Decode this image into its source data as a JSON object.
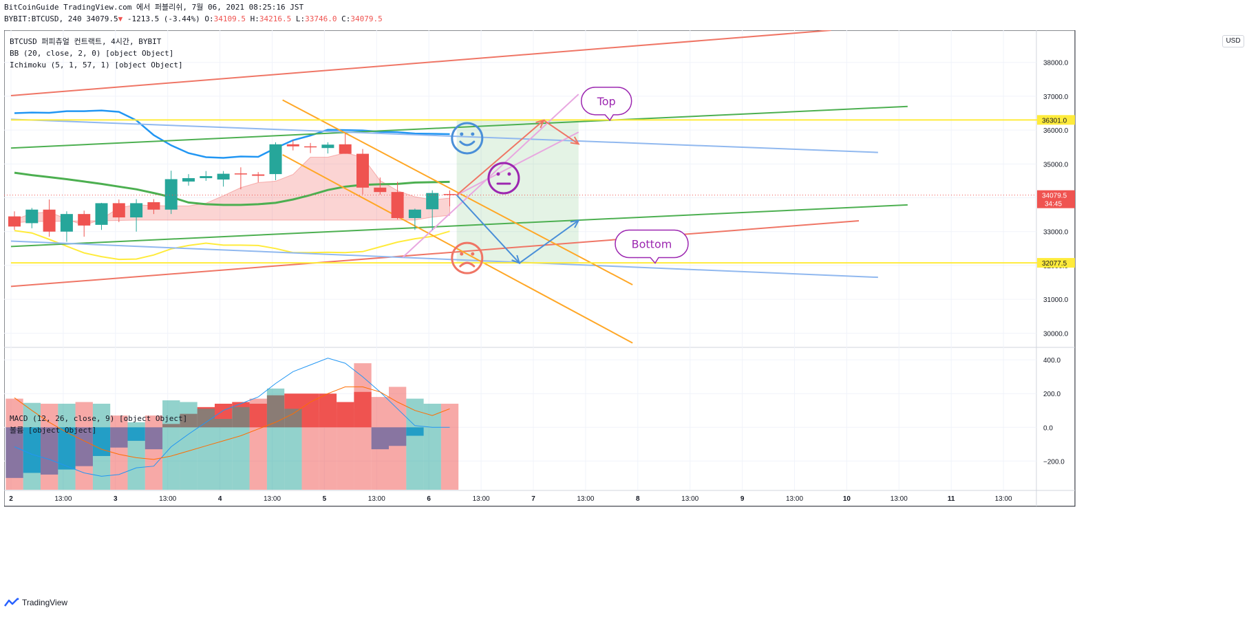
{
  "header": {
    "line1": "BitCoinGuide TradingView.com 에서 퍼블리쉬, 7월 06, 2021 08:25:16 JST",
    "line2_symbol": "BYBIT:BTCUSD, 240 34079.5",
    "line2_arrow": "▼",
    "line2_change": "-1213.5 (-3.44%)",
    "o_label": "O:",
    "o_value": "34109.5",
    "h_label": "H:",
    "h_value": "34216.5",
    "l_label": "L:",
    "l_value": "33746.0",
    "c_label": "C:",
    "c_value": "34079.5"
  },
  "legend": {
    "title": "BTCUSD 퍼피츄얼 컨트랙트, 4시간, BYBIT",
    "bb": "BB (20, close, 2, 0) [object Object]",
    "ichimoku": "Ichimoku (5, 1, 57, 1) [object Object]",
    "macd": "MACD (12, 26, close, 9) [object Object]",
    "volume": "볼륨 [object Object]"
  },
  "currency_badge": "USD",
  "branding": "TradingView",
  "annotations": {
    "top": "Top",
    "bottom": "Bottom"
  },
  "colors": {
    "up": "#26a69a",
    "down": "#ef5350",
    "blue": "#2196f3",
    "green": "#4caf50",
    "yellow": "#ffeb3b",
    "orange": "#ffa726",
    "salmon": "#ef7565",
    "lightblue": "#90b8ef",
    "pink": "#e8a7e0",
    "purple": "#9c27b0",
    "macd_line": "#2196f3",
    "signal_line": "#ff6d00"
  },
  "chart_data": [
    {
      "type": "candlestick",
      "title": "BTCUSD 퍼피츄얼 컨트랙트, 4시간, BYBIT",
      "ylim": [
        29600,
        38950
      ],
      "yticks": [
        30000,
        31000,
        32000,
        33000,
        34000,
        35000,
        36000,
        37000,
        38000
      ],
      "ytick_labels": [
        "30000.0",
        "31000.0",
        "32000.0",
        "33000.0",
        "34000.0",
        "35000.0",
        "36000.0",
        "37000.0",
        "38000.0"
      ],
      "price_labels": [
        {
          "value": 36301.0,
          "text": "36301.0",
          "color": "#ffeb3b"
        },
        {
          "value": 34079.5,
          "text": "34079.5",
          "sub": "34:45",
          "color": "#ef5350"
        },
        {
          "value": 32077.5,
          "text": "32077.5",
          "color": "#ffeb3b"
        }
      ],
      "xticks": [
        "2",
        "13:00",
        "3",
        "13:00",
        "4",
        "13:00",
        "5",
        "13:00",
        "6",
        "13:00",
        "7",
        "13:00",
        "8",
        "13:00",
        "9",
        "13:00",
        "10",
        "13:00",
        "11",
        "13:00"
      ],
      "candles": [
        {
          "o": 33450,
          "h": 33600,
          "l": 33050,
          "c": 33150
        },
        {
          "o": 33250,
          "h": 33700,
          "l": 33100,
          "c": 33650
        },
        {
          "o": 33650,
          "h": 33950,
          "l": 32850,
          "c": 33000
        },
        {
          "o": 33000,
          "h": 33600,
          "l": 32700,
          "c": 33520
        },
        {
          "o": 33520,
          "h": 33620,
          "l": 32850,
          "c": 33180
        },
        {
          "o": 33200,
          "h": 33850,
          "l": 33050,
          "c": 33840
        },
        {
          "o": 33840,
          "h": 33950,
          "l": 33280,
          "c": 33420
        },
        {
          "o": 33420,
          "h": 33960,
          "l": 33000,
          "c": 33840
        },
        {
          "o": 33870,
          "h": 33960,
          "l": 33520,
          "c": 33650
        },
        {
          "o": 33650,
          "h": 34800,
          "l": 33520,
          "c": 34550
        },
        {
          "o": 34480,
          "h": 34700,
          "l": 34360,
          "c": 34580
        },
        {
          "o": 34580,
          "h": 34790,
          "l": 34500,
          "c": 34640
        },
        {
          "o": 34540,
          "h": 34790,
          "l": 34330,
          "c": 34710
        },
        {
          "o": 34720,
          "h": 34900,
          "l": 34250,
          "c": 34690
        },
        {
          "o": 34690,
          "h": 34760,
          "l": 34460,
          "c": 34650
        },
        {
          "o": 34700,
          "h": 35640,
          "l": 34520,
          "c": 35580
        },
        {
          "o": 35580,
          "h": 35700,
          "l": 35400,
          "c": 35520
        },
        {
          "o": 35520,
          "h": 35620,
          "l": 35320,
          "c": 35500
        },
        {
          "o": 35470,
          "h": 35640,
          "l": 35310,
          "c": 35570
        },
        {
          "o": 35580,
          "h": 35900,
          "l": 35300,
          "c": 35300
        },
        {
          "o": 35300,
          "h": 35440,
          "l": 34100,
          "c": 34300
        },
        {
          "o": 34300,
          "h": 34600,
          "l": 34090,
          "c": 34170
        },
        {
          "o": 34170,
          "h": 34470,
          "l": 33360,
          "c": 33400
        },
        {
          "o": 33400,
          "h": 33680,
          "l": 33050,
          "c": 33650
        },
        {
          "o": 33660,
          "h": 34220,
          "l": 33050,
          "c": 34140
        },
        {
          "o": 34110,
          "h": 34220,
          "l": 33750,
          "c": 34080
        }
      ],
      "bb_middle": [
        34740,
        34670,
        34610,
        34550,
        34480,
        34410,
        34330,
        34250,
        34140,
        34020,
        33860,
        33810,
        33790,
        33790,
        33810,
        33850,
        33950,
        34080,
        34230,
        34330,
        34380,
        34400,
        34410,
        34450,
        34460,
        34470
      ],
      "bb_upper": [
        36500,
        36520,
        36510,
        36560,
        36560,
        36580,
        36540,
        36290,
        35850,
        35550,
        35320,
        35200,
        35180,
        35220,
        35210,
        35470,
        35700,
        35840,
        36010,
        36000,
        35990,
        35950,
        35940,
        35900,
        35890,
        35880
      ],
      "cloud_top": [
        33350,
        33540,
        33580,
        33370,
        33180,
        33370,
        33710,
        33790,
        33770,
        33760,
        33760,
        33840,
        34060,
        34300,
        34450,
        34490,
        34690,
        35200,
        35200,
        35330,
        35200,
        34510,
        34210,
        34030,
        33940,
        33990
      ],
      "cloud_bottom": [
        33260,
        33300,
        33300,
        33310,
        33320,
        33320,
        33330,
        33340,
        33340,
        33340,
        33340,
        33340,
        33340,
        33340,
        33340,
        33340,
        33340,
        33340,
        33340,
        33340,
        33340,
        33340,
        33340,
        33340,
        33430,
        33480
      ],
      "lagging_span": [
        33030,
        32960,
        32770,
        32570,
        32370,
        32260,
        32180,
        32190,
        32310,
        32490,
        32590,
        32660,
        32600,
        32600,
        32590,
        32500,
        32380,
        32380,
        32390,
        32380,
        32410,
        32550,
        32690,
        32790,
        32860,
        33010
      ],
      "prediction_zone": {
        "from_bar": 25.4,
        "to_bar": 32.4,
        "top": 36301.0,
        "bottom": 32077.5
      },
      "trendlines": [
        {
          "color": "#ef7565",
          "x1": -0.2,
          "y1": 37020,
          "x2": 46.9,
          "y2": 38950
        },
        {
          "color": "#ef7565",
          "x1": -0.2,
          "y1": 31380,
          "x2": 48.5,
          "y2": 33320
        },
        {
          "color": "#4caf50",
          "x1": -0.2,
          "y1": 35470,
          "x2": 51.3,
          "y2": 36700
        },
        {
          "color": "#4caf50",
          "x1": -0.2,
          "y1": 32560,
          "x2": 51.3,
          "y2": 33790
        },
        {
          "color": "#90b8ef",
          "x1": -0.2,
          "y1": 36320,
          "x2": 49.6,
          "y2": 35340
        },
        {
          "color": "#90b8ef",
          "x1": -0.2,
          "y1": 32720,
          "x2": 49.6,
          "y2": 31650
        },
        {
          "color": "#ffa726",
          "x1": 15.4,
          "y1": 36890,
          "x2": 35.5,
          "y2": 31430
        },
        {
          "color": "#ffa726",
          "x1": 15.4,
          "y1": 35270,
          "x2": 35.5,
          "y2": 29710
        },
        {
          "color": "#ffeb3b",
          "x1": -0.2,
          "y1": 36301.0,
          "x2": 59.5,
          "y2": 36301.0
        },
        {
          "color": "#ffeb3b",
          "x1": -0.2,
          "y1": 32077.5,
          "x2": 59.5,
          "y2": 32077.5
        },
        {
          "color": "#e8a7e0",
          "x1": 22.3,
          "y1": 32240,
          "x2": 32.4,
          "y2": 37060
        },
        {
          "color": "#e8a7e0",
          "x1": 25.4,
          "y1": 34080,
          "x2": 32.4,
          "y2": 35940
        }
      ],
      "arrows": [
        {
          "color": "#ef7565",
          "points": [
            [
              25.4,
              34080
            ],
            [
              30.4,
              36290
            ],
            [
              32.4,
              35590
            ]
          ]
        },
        {
          "color": "#4a8fd8",
          "points": [
            [
              25.4,
              34080
            ],
            [
              29.0,
              32070
            ],
            [
              32.4,
              33330
            ]
          ]
        }
      ],
      "icons": [
        {
          "name": "smiley-happy",
          "bar": 26.0,
          "price": 35760,
          "color": "#4a8fd8"
        },
        {
          "name": "smiley-neutral",
          "bar": 28.1,
          "price": 34580,
          "color": "#9c27b0"
        },
        {
          "name": "smiley-sad",
          "bar": 26.0,
          "price": 32220,
          "color": "#ef7565"
        }
      ],
      "callouts": [
        {
          "text": "Top",
          "bar": 34.0,
          "price": 36860
        },
        {
          "text": "Bottom",
          "bar": 36.6,
          "price": 32640
        }
      ],
      "current_price": 34079.5
    },
    {
      "type": "macd",
      "title": "MACD (12, 26, close, 9) [object Object]",
      "ylim": [
        -370,
        470
      ],
      "yticks": [
        -200,
        0,
        200,
        400
      ],
      "ytick_labels": [
        "−200.0",
        "0.0",
        "200.0",
        "400.0"
      ],
      "macd": [
        -115,
        -160,
        -190,
        -230,
        -270,
        -290,
        -280,
        -240,
        -230,
        -115,
        -40,
        30,
        100,
        140,
        180,
        260,
        330,
        370,
        410,
        380,
        300,
        210,
        110,
        10,
        0,
        0
      ],
      "signal": [
        175,
        100,
        30,
        -30,
        -80,
        -130,
        -160,
        -180,
        -190,
        -170,
        -140,
        -110,
        -80,
        -50,
        -10,
        30,
        80,
        150,
        200,
        240,
        240,
        210,
        150,
        100,
        70,
        110
      ],
      "histogram": [
        -300,
        -270,
        -280,
        -250,
        -230,
        -170,
        -120,
        -80,
        -130,
        20,
        80,
        120,
        140,
        150,
        140,
        190,
        200,
        200,
        200,
        150,
        210,
        -130,
        -110,
        -50,
        0,
        0
      ],
      "volume": [
        170,
        145,
        140,
        140,
        150,
        140,
        70,
        30,
        70,
        160,
        150,
        110,
        50,
        120,
        170,
        230,
        110,
        170,
        90,
        110,
        380,
        180,
        240,
        170,
        140,
        140
      ],
      "volume_down": [
        true,
        false,
        true,
        false,
        true,
        false,
        true,
        false,
        true,
        false,
        false,
        false,
        false,
        false,
        true,
        false,
        false,
        true,
        true,
        true,
        true,
        true,
        true,
        false,
        false,
        true
      ]
    }
  ]
}
